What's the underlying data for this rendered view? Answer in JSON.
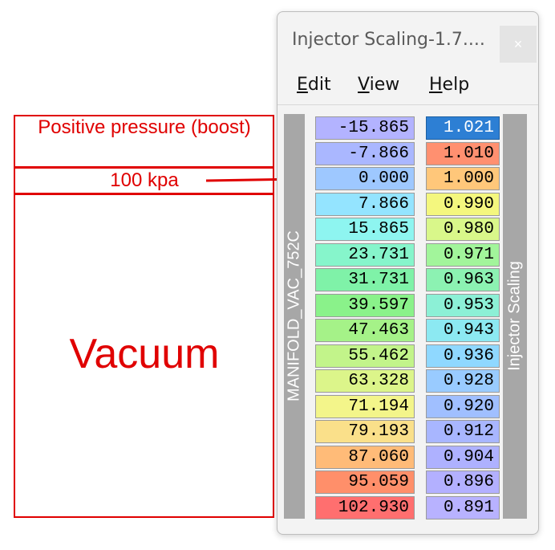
{
  "annotations": {
    "boost_label": "Positive pressure (boost)",
    "kpa_label": "100 kpa",
    "vacuum_label": "Vacuum"
  },
  "window": {
    "title": "Injector Scaling-1.7....",
    "close_glyph": "×"
  },
  "menu": {
    "edit": "Edit",
    "view": "View",
    "help": "Help"
  },
  "axis_label": "MANIFOLD_VAC_752C",
  "table_label": "Injector Scaling",
  "rows": [
    {
      "axis": "-15.865",
      "value": "1.021",
      "axis_color": "#b3b3ff",
      "value_color": "#2d7fd4",
      "selected": true
    },
    {
      "axis": "-7.866",
      "value": "1.010",
      "axis_color": "#aab7ff",
      "value_color": "#ff9070"
    },
    {
      "axis": "0.000",
      "value": "1.000",
      "axis_color": "#9ec8ff",
      "value_color": "#ffc77a"
    },
    {
      "axis": "7.866",
      "value": "0.990",
      "axis_color": "#94e4ff",
      "value_color": "#f4f77e"
    },
    {
      "axis": "15.865",
      "value": "0.980",
      "axis_color": "#8ef5f0",
      "value_color": "#d9f78a"
    },
    {
      "axis": "23.731",
      "value": "0.971",
      "axis_color": "#86f5cb",
      "value_color": "#a2f59b"
    },
    {
      "axis": "31.731",
      "value": "0.963",
      "axis_color": "#7ff2a8",
      "value_color": "#8cf2b2"
    },
    {
      "axis": "39.597",
      "value": "0.953",
      "axis_color": "#8af28a",
      "value_color": "#8cf0d6"
    },
    {
      "axis": "47.463",
      "value": "0.943",
      "axis_color": "#a5f288",
      "value_color": "#8ce9f2"
    },
    {
      "axis": "55.462",
      "value": "0.936",
      "axis_color": "#c2f48a",
      "value_color": "#8fd8ff"
    },
    {
      "axis": "63.328",
      "value": "0.928",
      "axis_color": "#dcf58a",
      "value_color": "#99cbff"
    },
    {
      "axis": "71.194",
      "value": "0.920",
      "axis_color": "#f3f58a",
      "value_color": "#a0bfff"
    },
    {
      "axis": "79.193",
      "value": "0.912",
      "axis_color": "#fae08a",
      "value_color": "#a8b6ff"
    },
    {
      "axis": "87.060",
      "value": "0.904",
      "axis_color": "#ffbb78",
      "value_color": "#aeb1ff"
    },
    {
      "axis": "95.059",
      "value": "0.896",
      "axis_color": "#ff8f6a",
      "value_color": "#b3b0ff"
    },
    {
      "axis": "102.930",
      "value": "0.891",
      "axis_color": "#ff6f6f",
      "value_color": "#b8b2ff"
    }
  ],
  "colors": {
    "annotation_red": "#e00000",
    "selected_cell": "#2d7fd4"
  }
}
